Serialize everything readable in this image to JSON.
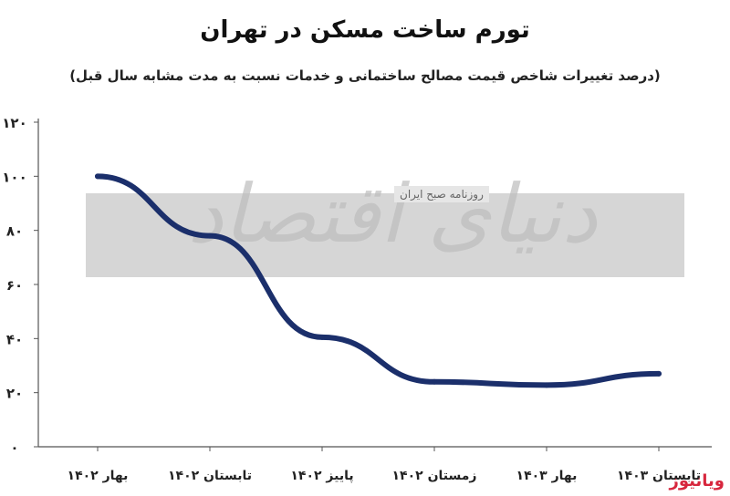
{
  "page": {
    "title": "تورم ساخت مسکن در تهران",
    "subtitle": "(درصد تغییرات شاخص قیمت مصالح ساختمانی و خدمات نسبت به مدت مشابه سال قبل)"
  },
  "watermark": {
    "text": "دنیای اقتصاد",
    "small_text": "روزنامه صبح ایران"
  },
  "logo": {
    "text": "ویانیوز"
  },
  "colors": {
    "line": "#1b2f6b",
    "axis": "#555555",
    "watermark_box": "#cfcfcf"
  },
  "chart_data": {
    "type": "line",
    "title": "تورم ساخت مسکن در تهران",
    "subtitle": "(درصد تغییرات شاخص قیمت مصالح ساختمانی و خدمات نسبت به مدت مشابه سال قبل)",
    "categories": [
      "بهار ۱۴۰۲",
      "تابستان ۱۴۰۲",
      "پاییز ۱۴۰۲",
      "زمستان ۱۴۰۲",
      "بهار ۱۴۰۳",
      "تابستان ۱۴۰۳"
    ],
    "values": [
      100,
      78,
      40.5,
      24,
      22.8,
      27
    ],
    "yticks": [
      "۰",
      "۲۰",
      "۴۰",
      "۶۰",
      "۸۰",
      "۱۰۰",
      "۱۲۰"
    ],
    "ylim": [
      0,
      120
    ],
    "grid": false,
    "legend": "none"
  }
}
